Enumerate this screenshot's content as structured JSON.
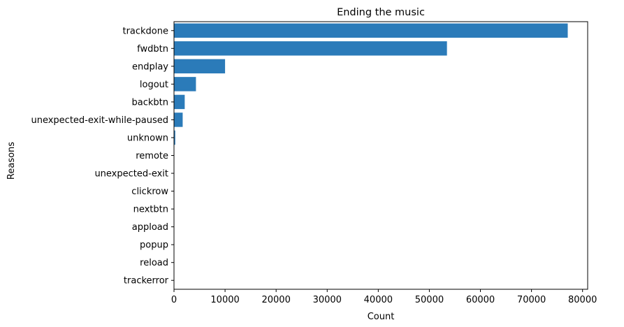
{
  "chart_data": {
    "type": "bar",
    "orientation": "horizontal",
    "title": "Ending the music",
    "xlabel": "Count",
    "ylabel": "Reasons",
    "categories": [
      "trackdone",
      "fwdbtn",
      "endplay",
      "logout",
      "backbtn",
      "unexpected-exit-while-paused",
      "unknown",
      "remote",
      "unexpected-exit",
      "clickrow",
      "nextbtn",
      "appload",
      "popup",
      "reload",
      "trackerror"
    ],
    "values": [
      77100,
      53450,
      10000,
      4300,
      2100,
      1700,
      250,
      30,
      20,
      10,
      8,
      5,
      3,
      2,
      1
    ],
    "xlim": [
      0,
      81000
    ],
    "xticks": [
      0,
      10000,
      20000,
      30000,
      40000,
      50000,
      60000,
      70000,
      80000
    ],
    "xtick_labels": [
      "0",
      "10000",
      "20000",
      "30000",
      "40000",
      "50000",
      "60000",
      "70000",
      "80000"
    ],
    "bar_color": "#2b7bb9",
    "grid": false,
    "legend": "none"
  }
}
